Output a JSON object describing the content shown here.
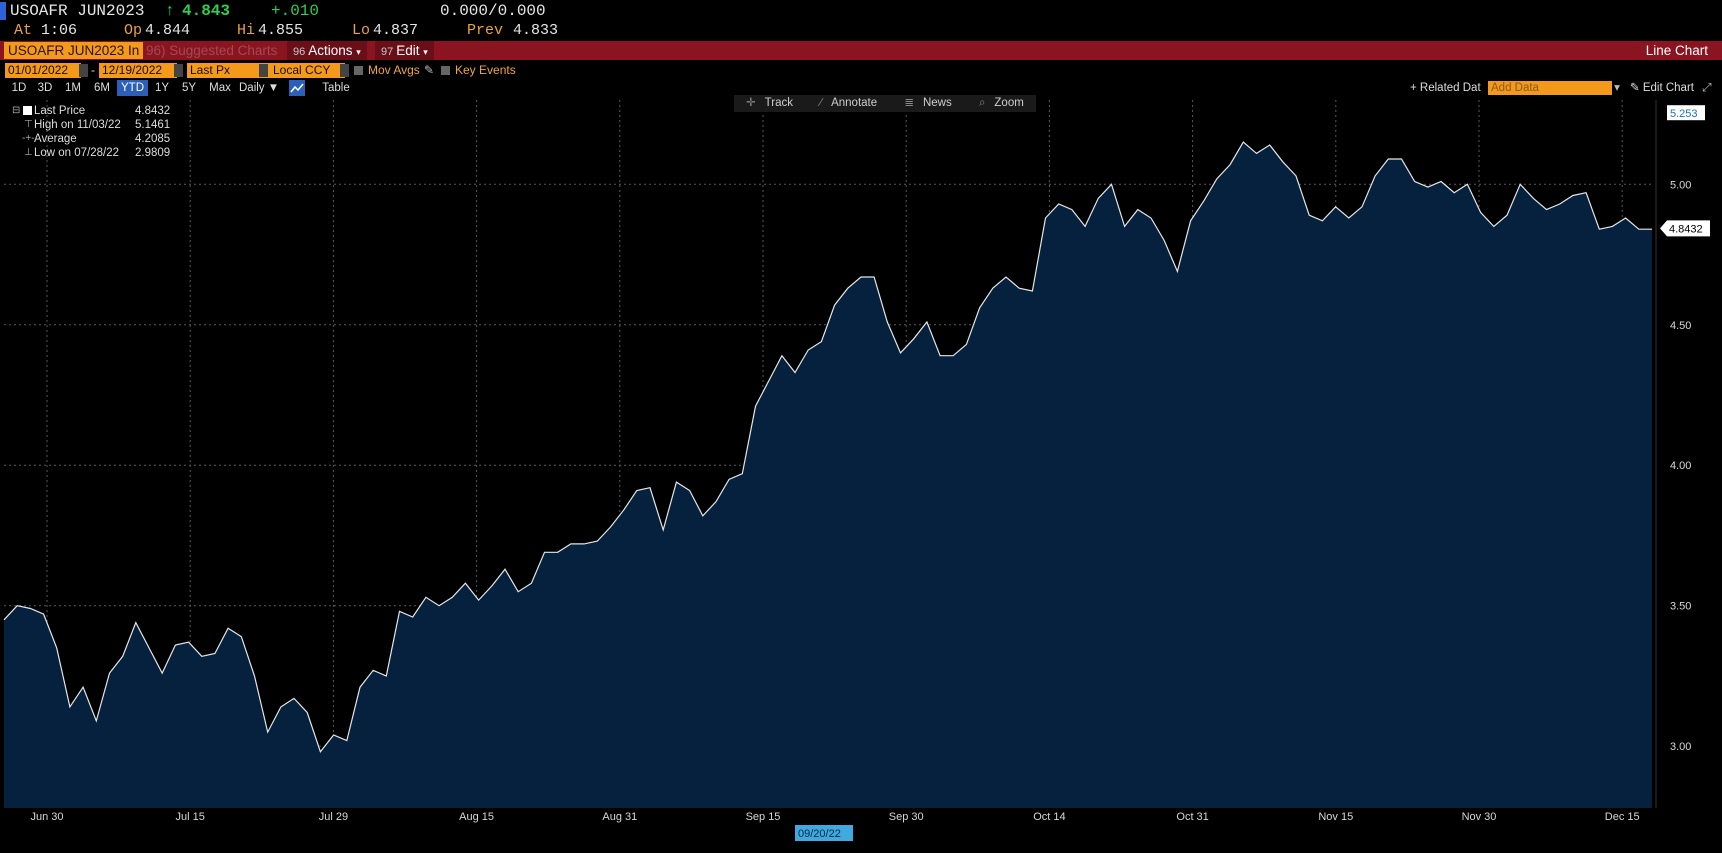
{
  "quote": {
    "ticker": "USOAFR JUN2023",
    "last": "4.843",
    "up_arrow": "↑",
    "change": "+.010",
    "bid_ask": "0.000/0.000",
    "at_label": "At",
    "at_value": "1:06",
    "open_label": "Op",
    "open_value": "4.844",
    "high_label": "Hi",
    "high_value": "4.855",
    "low_label": "Lo",
    "low_value": "4.837",
    "prev_label": "Prev",
    "prev_value": "4.833"
  },
  "toolbar": {
    "ticker_field": "USOAFR JUN2023 In",
    "suggested_num": "96",
    "suggested": "Suggested Charts",
    "actions_num": "96",
    "actions": "Actions",
    "edit_num": "97",
    "edit": "Edit",
    "title": "Line Chart"
  },
  "fields": {
    "start_date": "01/01/2022",
    "end_date": "12/19/2022",
    "price_field": "Last Px",
    "currency": "Local CCY",
    "mov_avgs": "Mov Avgs",
    "key_events": "Key Events"
  },
  "timeframes": [
    "1D",
    "3D",
    "1M",
    "6M",
    "YTD",
    "1Y",
    "5Y",
    "Max"
  ],
  "selected_timeframe": "YTD",
  "frequency": "Daily",
  "table_label": "Table",
  "related_data": "Related Dat",
  "add_data_placeholder": "Add Data",
  "edit_chart": "Edit Chart",
  "chart_tools": {
    "track": "Track",
    "annotate": "Annotate",
    "news": "News",
    "zoom": "Zoom"
  },
  "legend": {
    "last_price_label": "Last Price",
    "last_price_value": "4.8432",
    "high_label": "High on 11/03/22",
    "high_value": "5.1461",
    "average_label": "Average",
    "average_value": "4.2085",
    "low_label": "Low on 07/28/22",
    "low_value": "2.9809"
  },
  "axis": {
    "top_marker": "5.253",
    "last_marker": "4.8432",
    "cursor_date": "09/20/22"
  },
  "colors": {
    "accent_orange": "#f39a1c",
    "red_bar": "#8a1520",
    "area_fill": "#06213d",
    "line": "#e6e6e6",
    "up_green": "#2ccf4f"
  },
  "chart_data": {
    "type": "area",
    "title": "",
    "xlabel": "",
    "ylabel": "",
    "ylim": [
      2.78,
      5.3
    ],
    "y_ticks": [
      "3.00",
      "3.50",
      "4.00",
      "4.50",
      "5.00"
    ],
    "x_ticks": [
      "Jun 30",
      "Jul 15",
      "Jul 29",
      "Aug 15",
      "Aug 31",
      "Sep 15",
      "Sep 30",
      "Oct 14",
      "Oct 31",
      "Nov 15",
      "Nov 30",
      "Dec 15"
    ],
    "grid": true,
    "values": [
      3.45,
      3.5,
      3.49,
      3.47,
      3.35,
      3.14,
      3.21,
      3.09,
      3.26,
      3.32,
      3.44,
      3.35,
      3.26,
      3.36,
      3.37,
      3.32,
      3.33,
      3.42,
      3.39,
      3.25,
      3.05,
      3.14,
      3.17,
      3.12,
      2.98,
      3.04,
      3.02,
      3.21,
      3.27,
      3.25,
      3.48,
      3.46,
      3.53,
      3.5,
      3.53,
      3.58,
      3.52,
      3.57,
      3.63,
      3.55,
      3.58,
      3.69,
      3.69,
      3.72,
      3.72,
      3.73,
      3.78,
      3.84,
      3.91,
      3.92,
      3.77,
      3.94,
      3.91,
      3.82,
      3.87,
      3.95,
      3.97,
      4.21,
      4.3,
      4.39,
      4.33,
      4.41,
      4.44,
      4.57,
      4.63,
      4.67,
      4.67,
      4.51,
      4.4,
      4.45,
      4.51,
      4.39,
      4.39,
      4.43,
      4.56,
      4.63,
      4.67,
      4.63,
      4.62,
      4.88,
      4.93,
      4.91,
      4.85,
      4.95,
      5.0,
      4.85,
      4.91,
      4.88,
      4.8,
      4.69,
      4.87,
      4.94,
      5.02,
      5.07,
      5.15,
      5.11,
      5.14,
      5.08,
      5.03,
      4.89,
      4.87,
      4.92,
      4.88,
      4.92,
      5.03,
      5.09,
      5.09,
      5.01,
      4.99,
      5.01,
      4.97,
      5.0,
      4.9,
      4.85,
      4.89,
      5.0,
      4.95,
      4.91,
      4.93,
      4.96,
      4.97,
      4.84,
      4.85,
      4.88,
      4.84,
      4.84
    ]
  }
}
